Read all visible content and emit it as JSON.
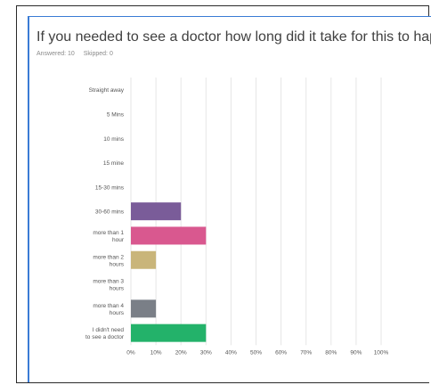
{
  "question": {
    "title": "If you needed to see a doctor how long did it take for this to happen?",
    "answered": "Answered: 10",
    "skipped": "Skipped: 0"
  },
  "chart_data": {
    "type": "bar",
    "orientation": "horizontal",
    "categories": [
      [
        "Straight away"
      ],
      [
        "5 Mins"
      ],
      [
        "10 mins"
      ],
      [
        "15 mine"
      ],
      [
        "15-30 mins"
      ],
      [
        "30-60 mins"
      ],
      [
        "more than 1",
        "hour"
      ],
      [
        "more than 2",
        "hours"
      ],
      [
        "more than 3",
        "hours"
      ],
      [
        "more than 4",
        "hours"
      ],
      [
        "I didn't need",
        "to see a doctor"
      ]
    ],
    "values": [
      0,
      0,
      0,
      0,
      0,
      20,
      30,
      10,
      0,
      10,
      30
    ],
    "colors": [
      "#7a5c99",
      "#7a5c99",
      "#7a5c99",
      "#7a5c99",
      "#7a5c99",
      "#7a5c99",
      "#d9588f",
      "#c9b57a",
      "#c9b57a",
      "#7a7f87",
      "#23b26a"
    ],
    "xlim": [
      0,
      100
    ],
    "xticks": [
      "0%",
      "10%",
      "20%",
      "30%",
      "40%",
      "50%",
      "60%",
      "70%",
      "80%",
      "90%",
      "100%"
    ],
    "grid": true
  }
}
